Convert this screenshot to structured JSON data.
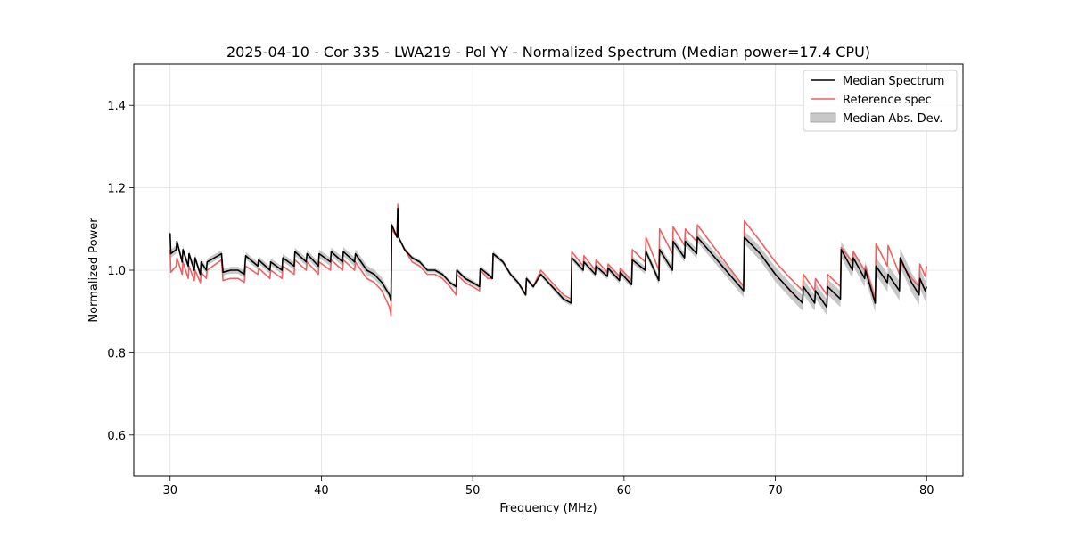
{
  "chart_data": {
    "type": "line",
    "title": "2025-04-10 - Cor 335 - LWA219 - Pol YY - Normalized Spectrum (Median power=17.4 CPU)",
    "xlabel": "Frequency (MHz)",
    "ylabel": "Normalized Power",
    "xlim": [
      27.6,
      82.4
    ],
    "ylim": [
      0.5,
      1.5
    ],
    "xticks": [
      30,
      40,
      50,
      60,
      70,
      80
    ],
    "yticks": [
      0.6,
      0.8,
      1.0,
      1.2,
      1.4
    ],
    "xtick_labels": [
      "30",
      "40",
      "50",
      "60",
      "70",
      "80"
    ],
    "ytick_labels": [
      "0.6",
      "0.8",
      "1.0",
      "1.2",
      "1.4"
    ],
    "grid": true,
    "legend_position": "top-right",
    "colors": {
      "median": "#000000",
      "reference": "#f06060",
      "mad_fill": "#b0b0b0"
    },
    "series": [
      {
        "name": "Median Spectrum",
        "x": [
          30.0,
          30.05,
          30.4,
          30.45,
          30.8,
          30.85,
          31.2,
          31.25,
          31.6,
          31.65,
          32.0,
          32.05,
          32.4,
          32.45,
          33.4,
          33.5,
          34.0,
          34.5,
          34.9,
          35.0,
          35.8,
          35.85,
          36.6,
          36.65,
          37.4,
          37.45,
          38.2,
          38.25,
          39.0,
          39.05,
          39.8,
          39.85,
          40.6,
          40.65,
          41.4,
          41.45,
          42.2,
          42.25,
          43.0,
          43.5,
          44.0,
          44.5,
          44.6,
          44.65,
          45.0,
          45.05,
          45.1,
          45.5,
          46.0,
          46.5,
          47.0,
          47.5,
          48.0,
          48.5,
          48.9,
          48.95,
          49.5,
          50.0,
          50.45,
          50.5,
          51.0,
          51.3,
          51.35,
          52.0,
          52.5,
          53.0,
          53.5,
          53.55,
          54.0,
          54.5,
          55.0,
          55.5,
          56.0,
          56.5,
          56.55,
          57.3,
          57.35,
          58.1,
          58.15,
          58.9,
          58.95,
          59.7,
          59.75,
          60.5,
          60.55,
          61.4,
          61.45,
          62.3,
          62.35,
          63.2,
          63.25,
          64.0,
          64.05,
          64.8,
          64.85,
          67.9,
          67.95,
          69.0,
          70.0,
          71.0,
          71.8,
          71.85,
          72.6,
          72.65,
          73.4,
          73.45,
          74.3,
          74.35,
          75.1,
          75.15,
          75.9,
          75.95,
          76.6,
          76.65,
          77.4,
          77.45,
          78.2,
          78.25,
          79.0,
          79.5,
          79.55,
          79.9,
          80.0
        ],
        "y": [
          1.09,
          1.04,
          1.05,
          1.07,
          1.02,
          1.05,
          1.01,
          1.04,
          1.0,
          1.03,
          0.99,
          1.02,
          1.0,
          1.02,
          1.04,
          0.995,
          1.0,
          1.0,
          0.99,
          1.035,
          1.01,
          1.025,
          1.0,
          1.02,
          1.0,
          1.03,
          1.01,
          1.045,
          1.02,
          1.04,
          1.01,
          1.04,
          1.02,
          1.045,
          1.02,
          1.045,
          1.02,
          1.04,
          1.0,
          0.99,
          0.97,
          0.94,
          0.925,
          1.11,
          1.08,
          1.15,
          1.08,
          1.05,
          1.03,
          1.02,
          1.0,
          1.0,
          0.99,
          0.97,
          0.96,
          1.0,
          0.98,
          0.97,
          0.96,
          1.005,
          0.99,
          0.98,
          1.04,
          1.02,
          0.99,
          0.97,
          0.94,
          0.98,
          0.96,
          0.99,
          0.97,
          0.95,
          0.93,
          0.92,
          1.03,
          1.0,
          1.02,
          0.99,
          1.01,
          0.985,
          1.005,
          0.975,
          0.995,
          0.965,
          1.025,
          1.0,
          1.045,
          0.975,
          1.05,
          1.0,
          1.07,
          1.03,
          1.07,
          1.04,
          1.08,
          0.95,
          1.08,
          1.04,
          0.99,
          0.95,
          0.92,
          0.96,
          0.92,
          0.95,
          0.91,
          0.96,
          0.93,
          1.05,
          1.0,
          1.03,
          0.98,
          1.0,
          0.92,
          1.01,
          0.97,
          0.99,
          0.95,
          1.03,
          0.97,
          0.94,
          0.98,
          0.95,
          0.96
        ]
      },
      {
        "name": "Reference spec",
        "x": [
          30.0,
          30.05,
          30.4,
          30.45,
          30.8,
          30.85,
          31.2,
          31.25,
          31.6,
          31.65,
          32.0,
          32.05,
          32.4,
          32.45,
          33.4,
          33.5,
          34.0,
          34.5,
          34.9,
          35.0,
          35.8,
          35.85,
          36.6,
          36.65,
          37.4,
          37.45,
          38.2,
          38.25,
          39.0,
          39.05,
          39.8,
          39.85,
          40.6,
          40.65,
          41.4,
          41.45,
          42.2,
          42.25,
          43.0,
          43.5,
          44.0,
          44.5,
          44.6,
          44.65,
          45.0,
          45.05,
          45.1,
          45.5,
          46.0,
          46.5,
          47.0,
          47.5,
          48.0,
          48.5,
          48.9,
          48.95,
          49.5,
          50.0,
          50.45,
          50.5,
          51.0,
          51.3,
          51.35,
          52.0,
          52.5,
          53.0,
          53.5,
          53.55,
          54.0,
          54.5,
          55.0,
          55.5,
          56.0,
          56.5,
          56.55,
          57.3,
          57.35,
          58.1,
          58.15,
          58.9,
          58.95,
          59.7,
          59.75,
          60.5,
          60.55,
          61.4,
          61.45,
          62.3,
          62.35,
          63.2,
          63.25,
          64.0,
          64.05,
          64.8,
          64.85,
          67.9,
          67.95,
          69.0,
          70.0,
          71.0,
          71.8,
          71.85,
          72.6,
          72.65,
          73.4,
          73.45,
          74.3,
          74.35,
          75.1,
          75.15,
          75.9,
          75.95,
          76.6,
          76.65,
          77.4,
          77.45,
          78.2,
          78.25,
          79.0,
          79.5,
          79.55,
          79.9,
          80.0
        ],
        "y": [
          1.05,
          0.995,
          1.01,
          1.03,
          0.99,
          1.02,
          0.98,
          1.01,
          0.975,
          1.0,
          0.97,
          0.995,
          0.98,
          1.0,
          1.025,
          0.975,
          0.98,
          0.98,
          0.97,
          1.01,
          0.99,
          1.005,
          0.98,
          1.0,
          0.98,
          1.01,
          0.99,
          1.025,
          1.0,
          1.02,
          0.99,
          1.02,
          1.0,
          1.025,
          1.0,
          1.025,
          1.0,
          1.02,
          0.98,
          0.97,
          0.95,
          0.91,
          0.89,
          1.1,
          1.08,
          1.16,
          1.08,
          1.05,
          1.02,
          1.01,
          0.99,
          0.99,
          0.98,
          0.96,
          0.94,
          0.99,
          0.97,
          0.96,
          0.95,
          1.0,
          0.98,
          0.98,
          1.04,
          1.02,
          0.99,
          0.97,
          0.94,
          0.98,
          0.96,
          1.0,
          0.98,
          0.96,
          0.94,
          0.93,
          1.045,
          1.01,
          1.035,
          1.0,
          1.025,
          0.995,
          1.015,
          0.985,
          1.005,
          0.975,
          1.05,
          1.02,
          1.08,
          1.0,
          1.1,
          1.04,
          1.105,
          1.06,
          1.1,
          1.07,
          1.11,
          0.96,
          1.12,
          1.07,
          1.02,
          0.98,
          0.95,
          0.99,
          0.95,
          0.98,
          0.94,
          0.99,
          0.96,
          1.055,
          1.02,
          1.045,
          1.0,
          1.01,
          0.93,
          1.065,
          1.01,
          1.06,
          0.99,
          1.02,
          0.98,
          0.96,
          1.015,
          0.985,
          1.01
        ]
      }
    ],
    "band": {
      "name": "Median Abs. Dev.",
      "of_series": "Median Spectrum",
      "halfwidth_x": [
        30,
        33,
        40,
        44,
        45,
        50,
        55,
        60,
        65,
        70,
        75,
        80
      ],
      "halfwidth": [
        0.01,
        0.008,
        0.01,
        0.012,
        0.005,
        0.006,
        0.006,
        0.008,
        0.012,
        0.018,
        0.02,
        0.025
      ]
    }
  }
}
